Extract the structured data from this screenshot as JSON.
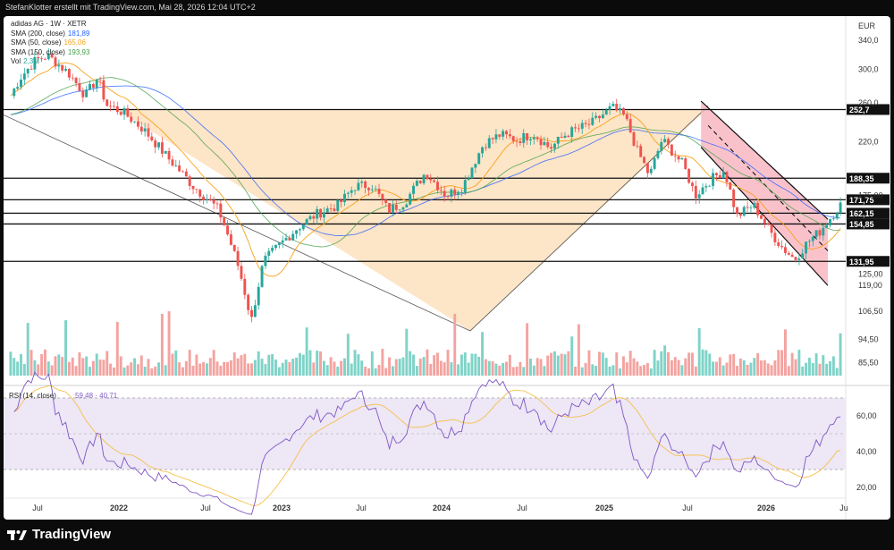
{
  "header": {
    "credit": "StefanKlotter erstellt mit TradingView.com, Mai 28, 2026 12:04 UTC+2"
  },
  "legend": {
    "symbol": "adidas AG · 1W · XETR",
    "lines": [
      {
        "label": "SMA (200, close)",
        "value": "181,89",
        "color": "#2962ff"
      },
      {
        "label": "SMA (50, close)",
        "value": "165,06",
        "color": "#f7a21b"
      },
      {
        "label": "SMA (150, close)",
        "value": "193,93",
        "color": "#43a047"
      },
      {
        "label": "Vol",
        "value": "2,3M",
        "color": "#26a69a"
      }
    ]
  },
  "currency": "EUR",
  "footer": {
    "brand": "TradingView"
  },
  "colors": {
    "up": "#26a69a",
    "down": "#ef5350",
    "triangle": "#fde0bd",
    "channel": "#f8b7c2",
    "rsi_band": "#ede7f6",
    "rsi_line": "#7e57c2",
    "rsi_ma": "#f7c04a"
  },
  "chart_data": [
    {
      "type": "candlestick",
      "title": "adidas AG · 1W · XETR",
      "x_ticks": [
        "Jul",
        "2022",
        "Jul",
        "2023",
        "Jul",
        "2024",
        "Jul",
        "2025",
        "Jul",
        "2026",
        "Ju"
      ],
      "y_ticks": [
        "340,0",
        "300,0",
        "260,0",
        "220,0",
        "175,00",
        "125,00",
        "119,00",
        "106,50",
        "94,50",
        "85,50"
      ],
      "ylim": [
        80,
        360
      ],
      "scale": "log",
      "levels": [
        {
          "label": "252,7",
          "value": 252.7
        },
        {
          "label": "188,35",
          "value": 188.35
        },
        {
          "label": "171,75",
          "value": 171.75
        },
        {
          "label": "162,15",
          "value": 162.15
        },
        {
          "label": "154,85",
          "value": 154.85
        },
        {
          "label": "131,95",
          "value": 131.95
        }
      ],
      "anchors": [
        {
          "t": 0.0,
          "p": 268
        },
        {
          "t": 0.012,
          "p": 290
        },
        {
          "t": 0.03,
          "p": 312
        },
        {
          "t": 0.045,
          "p": 318
        },
        {
          "t": 0.07,
          "p": 295
        },
        {
          "t": 0.09,
          "p": 268
        },
        {
          "t": 0.105,
          "p": 290
        },
        {
          "t": 0.115,
          "p": 258
        },
        {
          "t": 0.135,
          "p": 250
        },
        {
          "t": 0.16,
          "p": 232
        },
        {
          "t": 0.19,
          "p": 205
        },
        {
          "t": 0.22,
          "p": 182
        },
        {
          "t": 0.25,
          "p": 165
        },
        {
          "t": 0.275,
          "p": 128
        },
        {
          "t": 0.29,
          "p": 102
        },
        {
          "t": 0.305,
          "p": 132
        },
        {
          "t": 0.325,
          "p": 142
        },
        {
          "t": 0.345,
          "p": 152
        },
        {
          "t": 0.37,
          "p": 162
        },
        {
          "t": 0.395,
          "p": 168
        },
        {
          "t": 0.415,
          "p": 182
        },
        {
          "t": 0.435,
          "p": 183
        },
        {
          "t": 0.455,
          "p": 164
        },
        {
          "t": 0.475,
          "p": 170
        },
        {
          "t": 0.5,
          "p": 193
        },
        {
          "t": 0.525,
          "p": 175
        },
        {
          "t": 0.545,
          "p": 182
        },
        {
          "t": 0.57,
          "p": 218
        },
        {
          "t": 0.59,
          "p": 227
        },
        {
          "t": 0.61,
          "p": 222
        },
        {
          "t": 0.63,
          "p": 228
        },
        {
          "t": 0.65,
          "p": 214
        },
        {
          "t": 0.67,
          "p": 228
        },
        {
          "t": 0.7,
          "p": 238
        },
        {
          "t": 0.725,
          "p": 255
        },
        {
          "t": 0.74,
          "p": 245
        },
        {
          "t": 0.755,
          "p": 212
        },
        {
          "t": 0.77,
          "p": 190
        },
        {
          "t": 0.785,
          "p": 222
        },
        {
          "t": 0.81,
          "p": 200
        },
        {
          "t": 0.825,
          "p": 175
        },
        {
          "t": 0.845,
          "p": 188
        },
        {
          "t": 0.86,
          "p": 195
        },
        {
          "t": 0.875,
          "p": 160
        },
        {
          "t": 0.895,
          "p": 168
        },
        {
          "t": 0.915,
          "p": 150
        },
        {
          "t": 0.93,
          "p": 140
        },
        {
          "t": 0.945,
          "p": 133
        },
        {
          "t": 0.96,
          "p": 143
        },
        {
          "t": 0.975,
          "p": 150
        },
        {
          "t": 0.985,
          "p": 157
        },
        {
          "t": 1.0,
          "p": 168
        }
      ]
    },
    {
      "type": "line",
      "title": "RSI (14, close)",
      "values_label": "59,48 · 40,71",
      "y_ticks": [
        "60,00",
        "40,00",
        "20,00"
      ],
      "ylim": [
        15,
        75
      ],
      "bands": [
        30,
        70
      ],
      "rsi_last": 59.48,
      "ma_last": 40.71
    }
  ]
}
